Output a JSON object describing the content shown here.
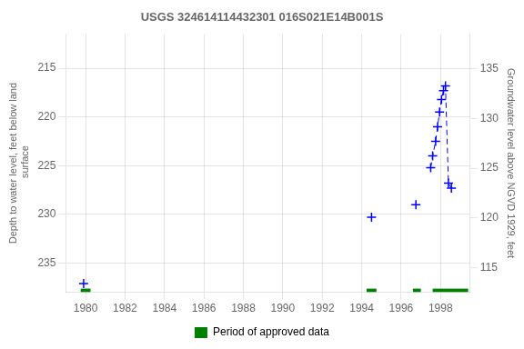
{
  "chart_data": {
    "type": "scatter",
    "title": "USGS 324614114432301 016S021E14B001S",
    "ylabel": "Depth to water level, feet below land\n surface",
    "y2label": "Groundwater level above NGVD 1929, feet",
    "xlim": [
      1979.0,
      1999.5
    ],
    "xticks": [
      1980,
      1982,
      1984,
      1986,
      1988,
      1990,
      1992,
      1994,
      1996,
      1998
    ],
    "ylim": [
      238.0,
      211.5
    ],
    "yticks": [
      215,
      220,
      225,
      230,
      235
    ],
    "y2lim": [
      112.5,
      138.5
    ],
    "y2ticks": [
      115,
      120,
      125,
      130,
      135
    ],
    "grid": true,
    "legend": "bottom",
    "series": [
      {
        "type": "scatter",
        "color": "#0000ff",
        "marker": "+",
        "line_style": "none",
        "x": [
          1979.9,
          1994.5,
          1996.75
        ],
        "values": [
          237.1,
          230.3,
          229.0
        ]
      },
      {
        "type": "line",
        "color": "#0000ff",
        "marker": "+",
        "line_style": "dashed",
        "x": [
          1997.5,
          1997.6,
          1997.75,
          1997.85,
          1997.95,
          1998.05,
          1998.15,
          1998.25,
          1998.4,
          1998.55
        ],
        "values": [
          225.2,
          224.0,
          222.5,
          221.0,
          219.5,
          218.2,
          217.3,
          216.8,
          226.8,
          227.3
        ]
      },
      {
        "type": "span",
        "name": "Period of approved data",
        "color": "#008000",
        "periods": [
          [
            1979.75,
            1980.25
          ],
          [
            1994.25,
            1994.75
          ],
          [
            1996.6,
            1997.0
          ],
          [
            1997.6,
            1999.4
          ]
        ]
      }
    ]
  }
}
